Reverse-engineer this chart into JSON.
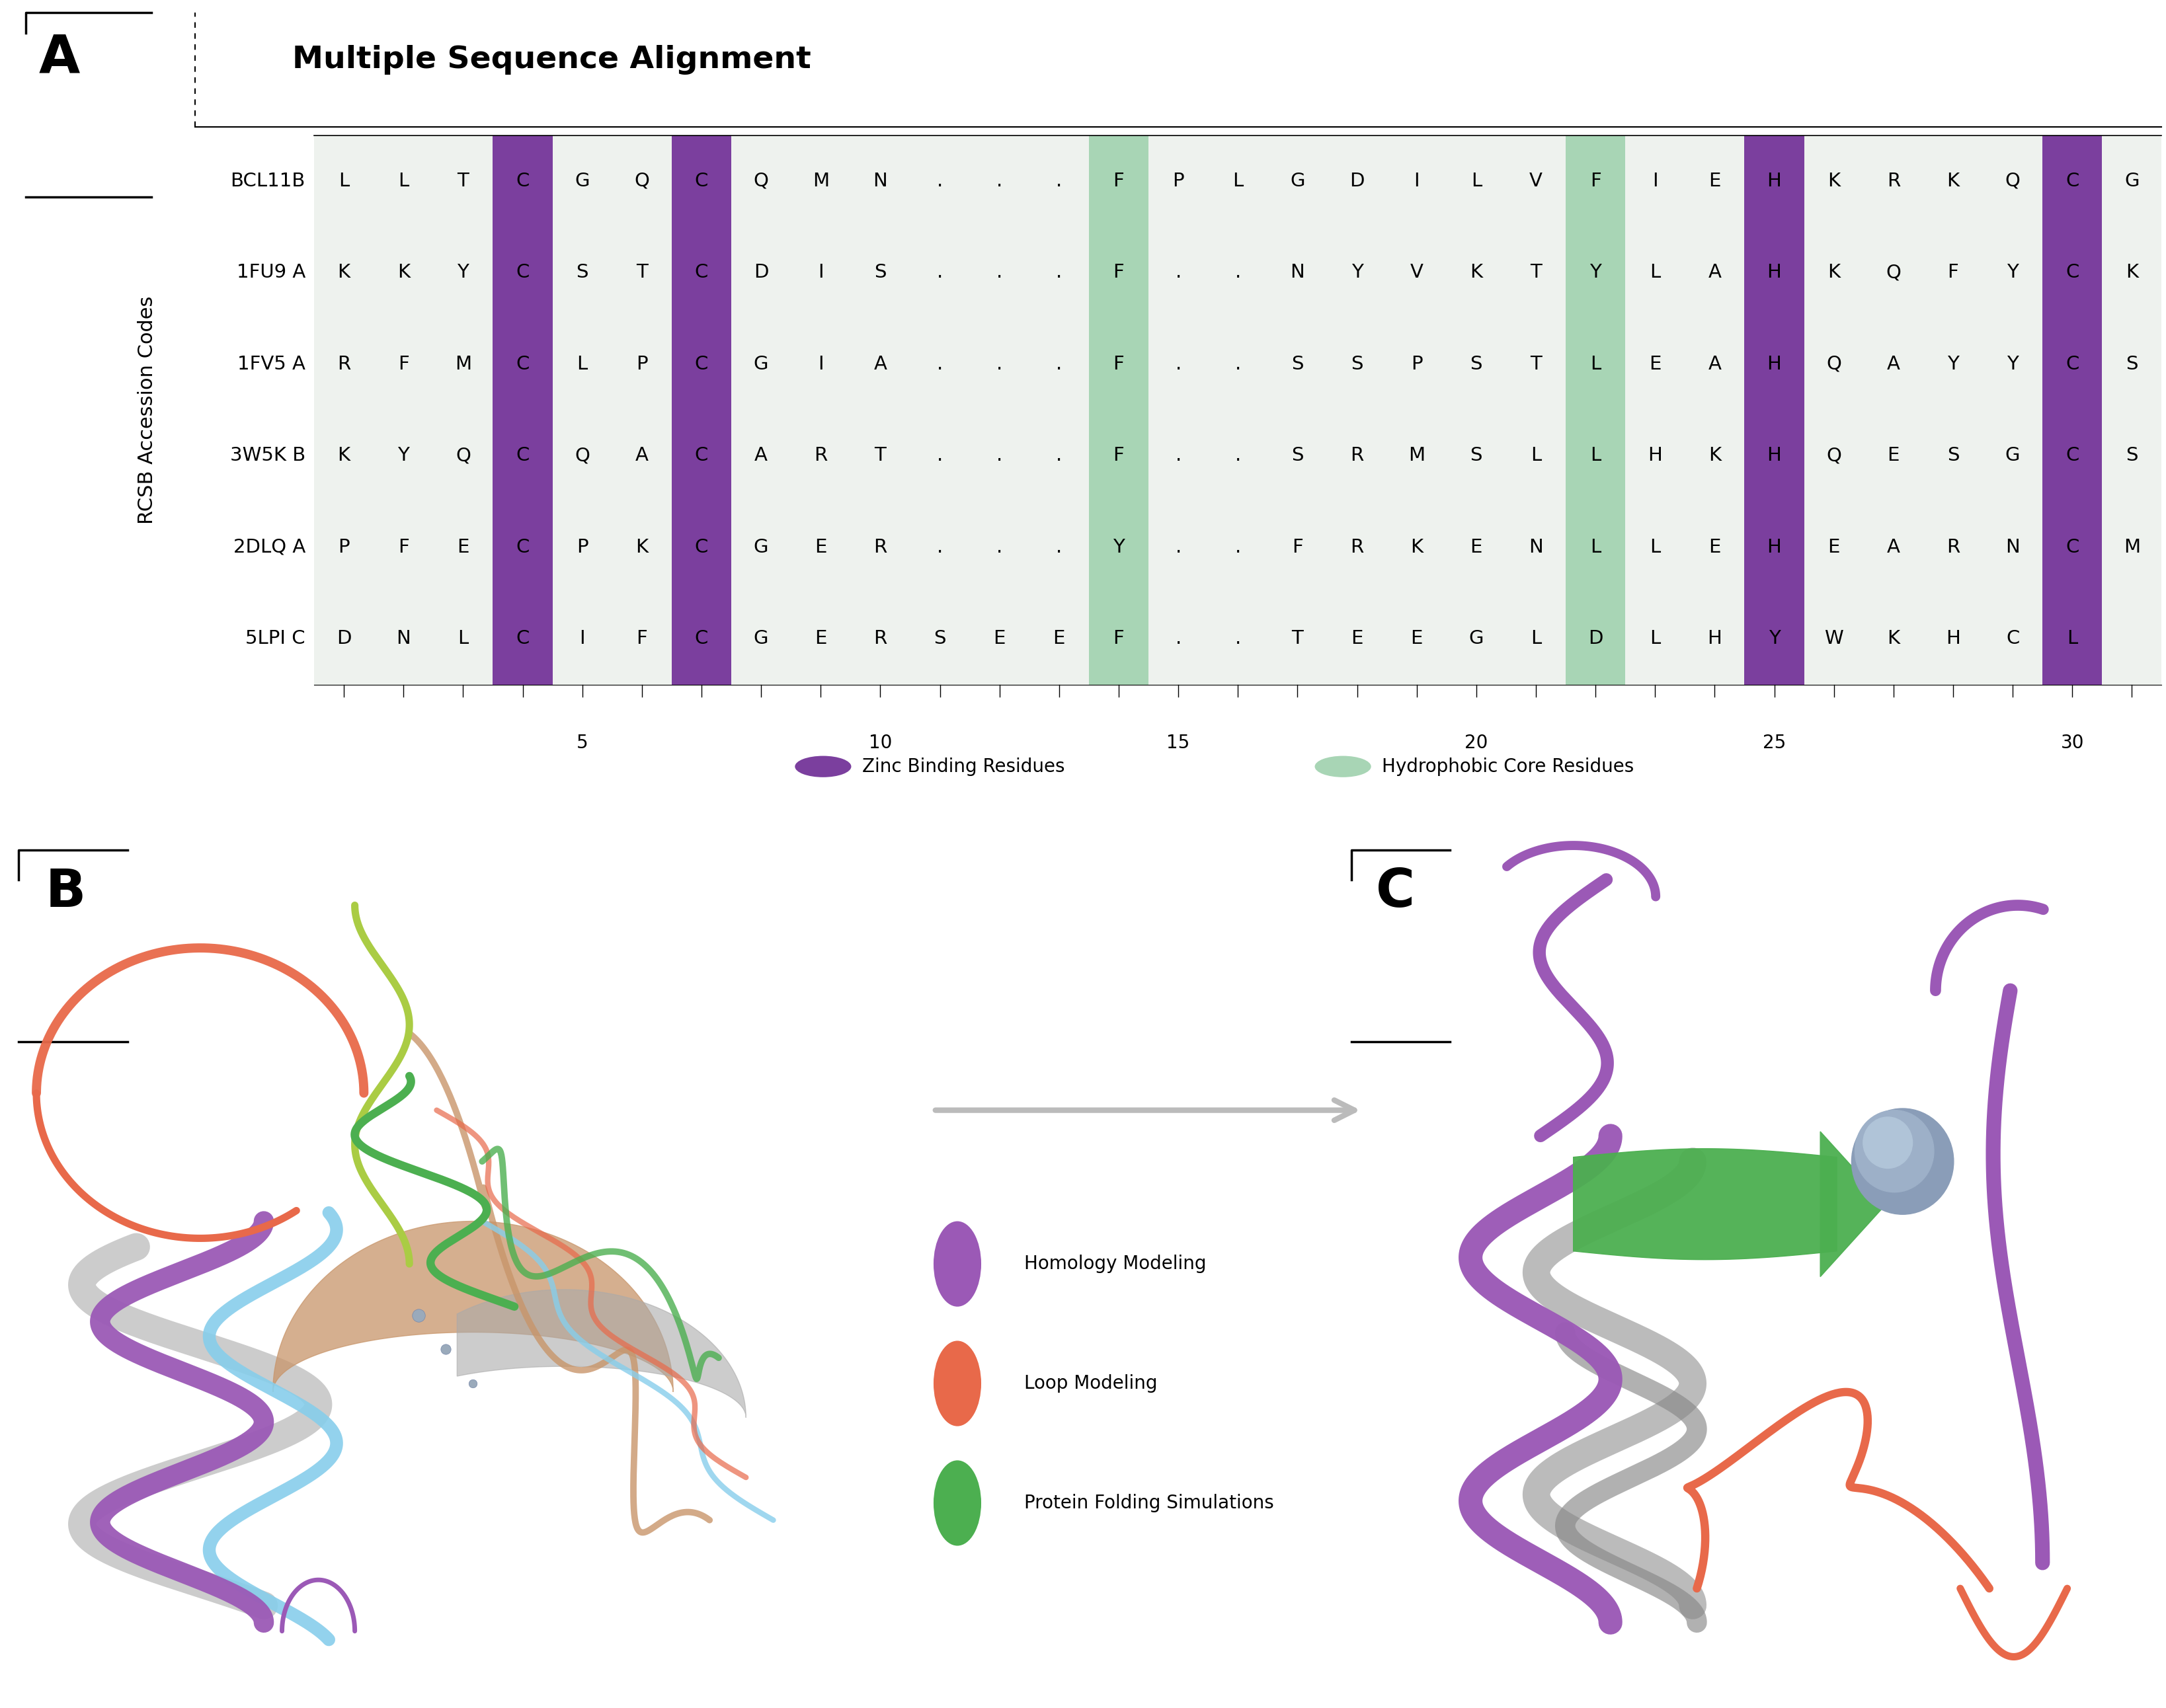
{
  "title": "Multiple Sequence Alignment",
  "panel_A_label": "A",
  "panel_B_label": "B",
  "panel_C_label": "C",
  "sequences": {
    "BCL11B": [
      "L",
      "L",
      "T",
      "C",
      "G",
      "Q",
      "C",
      "Q",
      "M",
      "N",
      ".",
      ".",
      ".",
      "F",
      "P",
      "L",
      "G",
      "D",
      "I",
      "L",
      "V",
      "F",
      "I",
      "E",
      "H",
      "K",
      "R",
      "K",
      "Q",
      "C",
      "G"
    ],
    "1FU9 A": [
      "K",
      "K",
      "Y",
      "C",
      "S",
      "T",
      "C",
      "D",
      "I",
      "S",
      ".",
      ".",
      ".",
      "F",
      ".",
      ".",
      "N",
      "Y",
      "V",
      "K",
      "T",
      "Y",
      "L",
      "A",
      "H",
      "K",
      "Q",
      "F",
      "Y",
      "C",
      "K"
    ],
    "1FV5 A": [
      "R",
      "F",
      "M",
      "C",
      "L",
      "P",
      "C",
      "G",
      "I",
      "A",
      ".",
      ".",
      ".",
      "F",
      ".",
      ".",
      "S",
      "S",
      "P",
      "S",
      "T",
      "L",
      "E",
      "A",
      "H",
      "Q",
      "A",
      "Y",
      "Y",
      "C",
      "S"
    ],
    "3W5K B": [
      "K",
      "Y",
      "Q",
      "C",
      "Q",
      "A",
      "C",
      "A",
      "R",
      "T",
      ".",
      ".",
      ".",
      "F",
      ".",
      ".",
      "S",
      "R",
      "M",
      "S",
      "L",
      "L",
      "H",
      "K",
      "H",
      "Q",
      "E",
      "S",
      "G",
      "C",
      "S"
    ],
    "2DLQ A": [
      "P",
      "F",
      "E",
      "C",
      "P",
      "K",
      "C",
      "G",
      "E",
      "R",
      ".",
      ".",
      ".",
      "Y",
      ".",
      ".",
      "F",
      "R",
      "K",
      "E",
      "N",
      "L",
      "L",
      "E",
      "H",
      "E",
      "A",
      "R",
      "N",
      "C",
      "M"
    ],
    "5LPI C": [
      "D",
      "N",
      "L",
      "C",
      "I",
      "F",
      "C",
      "G",
      "E",
      "R",
      "S",
      "E",
      "E",
      "F",
      ".",
      ".",
      "T",
      "E",
      "E",
      "G",
      "L",
      "D",
      "L",
      "H",
      "Y",
      "W",
      "K",
      "H",
      "C",
      "L",
      ""
    ]
  },
  "row_labels": [
    "BCL11B",
    "1FU9 A",
    "1FV5 A",
    "3W5K B",
    "2DLQ A",
    "5LPI C"
  ],
  "n_cols": 31,
  "zinc_col_indices": [
    3,
    6,
    24,
    29
  ],
  "hydrophobic_col_indices": [
    13,
    21
  ],
  "zinc_color": "#7B3F9E",
  "hydrophobic_color": "#A8D5B5",
  "bg_color": "#EEF2EE",
  "legend_zinc_label": "Zinc Binding Residues",
  "legend_hydro_label": "Hydrophobic Core Residues",
  "ylabel": "RCSB Accession Codes",
  "tick_positions": [
    5,
    10,
    15,
    20,
    25,
    30
  ],
  "arrow_color": "#BBBBBB",
  "legend_items": [
    {
      "label": "Homology Modeling",
      "color": "#9B59B6"
    },
    {
      "label": "Loop Modeling",
      "color": "#E8694A"
    },
    {
      "label": "Protein Folding Simulations",
      "color": "#4CAF50"
    }
  ]
}
